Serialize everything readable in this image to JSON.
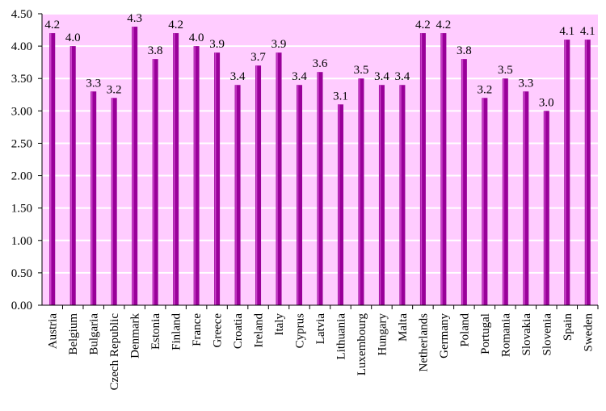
{
  "chart_data": {
    "type": "bar",
    "title": "",
    "xlabel": "",
    "ylabel": "",
    "ylim": [
      0,
      4.5
    ],
    "yticks": [
      "0.00",
      "0.50",
      "1.00",
      "1.50",
      "2.00",
      "2.50",
      "3.00",
      "3.50",
      "4.00",
      "4.50"
    ],
    "grid": true,
    "legend": "none",
    "categories": [
      "Austria",
      "Belgium",
      "Bulgaria",
      "Czech Republic",
      "Denmark",
      "Estonia",
      "Finland",
      "France",
      "Greece",
      "Croatia",
      "Ireland",
      "Italy",
      "Cyprus",
      "Latvia",
      "Lithuania",
      "Luxembourg",
      "Hungary",
      "Malta",
      "Netherlands",
      "Germany",
      "Poland",
      "Portugal",
      "Romania",
      "Slovakia",
      "Slovenia",
      "Spain",
      "Sweden"
    ],
    "values": [
      4.2,
      4.0,
      3.3,
      3.2,
      4.3,
      3.8,
      4.2,
      4.0,
      3.9,
      3.4,
      3.7,
      3.9,
      3.4,
      3.6,
      3.1,
      3.5,
      3.4,
      3.4,
      4.2,
      4.2,
      3.8,
      3.2,
      3.5,
      3.3,
      3.0,
      4.1,
      4.1
    ],
    "data_labels": [
      "4.2",
      "4.0",
      "3.3",
      "3.2",
      "4.3",
      "3.8",
      "4.2",
      "4.0",
      "3.9",
      "3.4",
      "3.7",
      "3.9",
      "3.4",
      "3.6",
      "3.1",
      "3.5",
      "3.4",
      "3.4",
      "4.2",
      "4.2",
      "3.8",
      "3.2",
      "3.5",
      "3.3",
      "3.0",
      "4.1",
      "4.1"
    ],
    "colors": {
      "bar_fill": "#990099",
      "bar_highlight": "#cc44cc",
      "plot_background": "#ffccff",
      "gridline": "#ffffff",
      "axis": "#000000"
    }
  }
}
